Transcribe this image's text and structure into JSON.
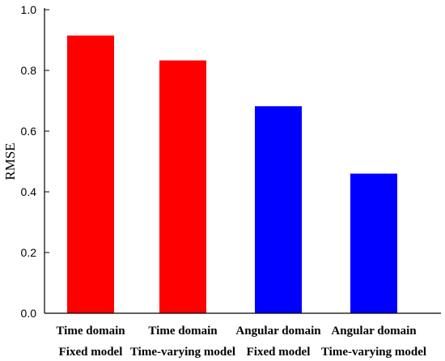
{
  "chart_data": {
    "type": "bar",
    "title": "",
    "xlabel": "",
    "ylabel": "RMSE",
    "ylim": [
      0,
      1.0
    ],
    "yticks": [
      "0.0",
      "0.2",
      "0.4",
      "0.6",
      "0.8",
      "1.0"
    ],
    "grid": false,
    "legend": "none",
    "categories": [
      [
        "Time domain",
        "Fixed model"
      ],
      [
        "Time domain",
        "Time-varying model"
      ],
      [
        "Angular domain",
        "Fixed model"
      ],
      [
        "Angular domain",
        "Time-varying model"
      ]
    ],
    "values": [
      0.915,
      0.833,
      0.682,
      0.46
    ],
    "colors": [
      "#ff0000",
      "#ff0000",
      "#0000ff",
      "#0000ff"
    ]
  }
}
